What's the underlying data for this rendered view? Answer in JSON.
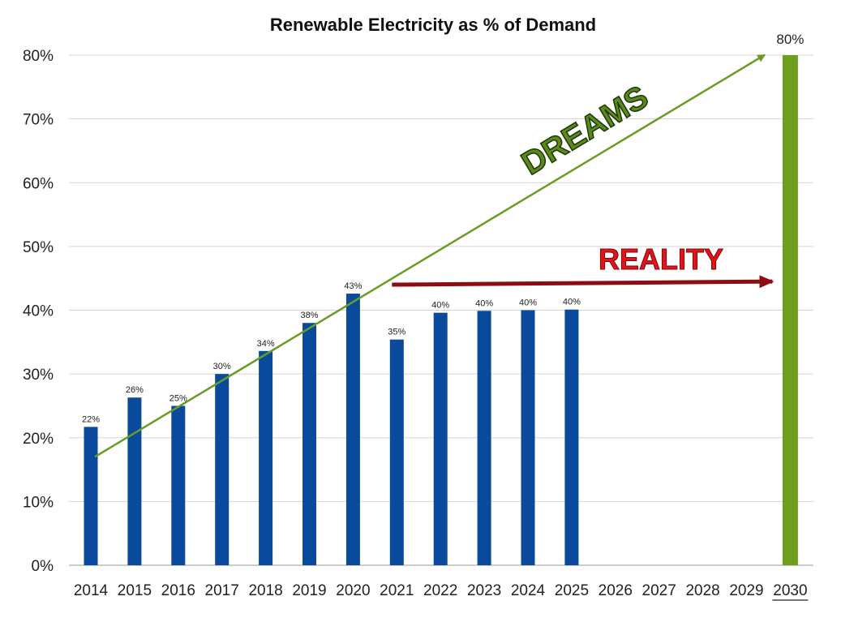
{
  "chart_data": {
    "type": "bar",
    "title": "Renewable Electricity as % of Demand",
    "categories": [
      "2014",
      "2015",
      "2016",
      "2017",
      "2018",
      "2019",
      "2020",
      "2021",
      "2022",
      "2023",
      "2024",
      "2025",
      "2026",
      "2027",
      "2028",
      "2029",
      "2030"
    ],
    "values": [
      22,
      26,
      25,
      30,
      34,
      38,
      43,
      35,
      40,
      40,
      40,
      40,
      null,
      null,
      null,
      null,
      80
    ],
    "data_labels": [
      "22%",
      "26%",
      "25%",
      "30%",
      "34%",
      "38%",
      "43%",
      "35%",
      "40%",
      "40%",
      "40%",
      "40%",
      "",
      "",
      "",
      "",
      "80%"
    ],
    "bar_values_precise": [
      21.7,
      26.3,
      25.0,
      30.0,
      33.6,
      38.0,
      42.6,
      35.4,
      39.6,
      39.9,
      40.0,
      40.1,
      null,
      null,
      null,
      null,
      80
    ],
    "yticks": [
      "0%",
      "10%",
      "20%",
      "30%",
      "40%",
      "50%",
      "60%",
      "70%",
      "80%"
    ],
    "ylim": [
      0,
      80
    ],
    "grid": true,
    "colors": {
      "actual": "#0a4a9c",
      "target": "#6e9e1e",
      "dreams": "#5b8a1c",
      "reality": "#8b0d10"
    },
    "annotations": [
      {
        "text": "DREAMS",
        "x_start": "2014",
        "y_start": 17,
        "x_end": "2030",
        "y_end": 80
      },
      {
        "text": "REALITY",
        "x_start": "2021",
        "y_start": 44,
        "x_end": "2030",
        "y_end": 44.5
      }
    ]
  }
}
